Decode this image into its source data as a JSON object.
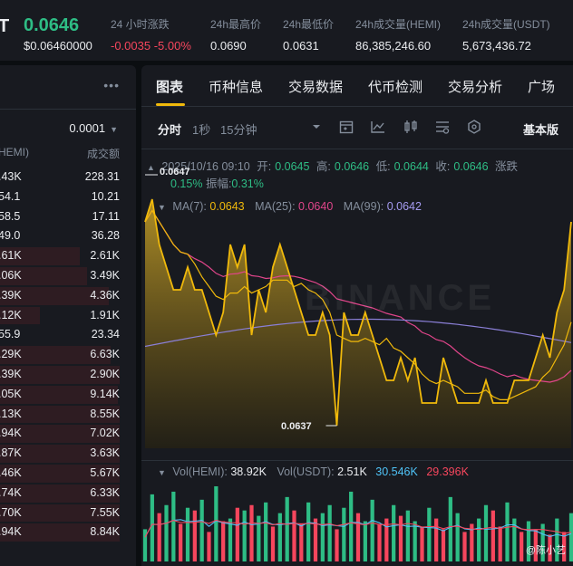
{
  "ticker": {
    "symbol": "T",
    "last_price": "0.0646",
    "last_price_usd": "$0.06460000",
    "stats": [
      {
        "label": "24 小时涨跌",
        "value": "-0.0035 -5.00%",
        "negative": true
      },
      {
        "label": "24h最高价",
        "value": "0.0690"
      },
      {
        "label": "24h最低价",
        "value": "0.0631"
      },
      {
        "label": "24h成交量(HEMI)",
        "value": "86,385,246.60"
      },
      {
        "label": "24h成交量(USDT)",
        "value": "5,673,436.72"
      }
    ]
  },
  "order_book": {
    "more_icon": "more-horizontal-icon",
    "precision": "0.0001",
    "col_amount": "HEMI)",
    "col_total": "成交额",
    "rows": [
      {
        "amount": ".43K",
        "total": "228.31",
        "dark": false
      },
      {
        "amount": "54.1",
        "total": "10.21",
        "dark": false
      },
      {
        "amount": "58.5",
        "total": "17.11",
        "dark": false
      },
      {
        "amount": "49.0",
        "total": "36.28",
        "dark": false
      },
      {
        "amount": ".61K",
        "total": "2.61K",
        "dark": true
      },
      {
        "amount": ".06K",
        "total": "3.49K",
        "dark": true
      },
      {
        "amount": ".39K",
        "total": "4.36K",
        "dark": true
      },
      {
        "amount": ".12K",
        "total": "1.91K",
        "dark": true
      },
      {
        "amount": "55.9",
        "total": "23.34",
        "dark": false
      },
      {
        "amount": ".29K",
        "total": "6.63K",
        "dark": true
      },
      {
        "amount": ".39K",
        "total": "2.90K",
        "dark": true
      },
      {
        "amount": ".05K",
        "total": "9.14K",
        "dark": true
      },
      {
        "amount": ".13K",
        "total": "8.55K",
        "dark": true
      },
      {
        "amount": ".94K",
        "total": "7.02K",
        "dark": true
      },
      {
        "amount": ".87K",
        "total": "3.63K",
        "dark": true
      },
      {
        "amount": ".46K",
        "total": "5.67K",
        "dark": true
      },
      {
        "amount": ".74K",
        "total": "6.33K",
        "dark": true
      },
      {
        "amount": ".70K",
        "total": "7.55K",
        "dark": true
      },
      {
        "amount": ".94K",
        "total": "8.84K",
        "dark": true
      }
    ]
  },
  "tabs": [
    "图表",
    "币种信息",
    "交易数据",
    "代币检测",
    "交易分析",
    "广场"
  ],
  "toolbar": {
    "intervals": [
      "分时",
      "1秒",
      "15分钟"
    ],
    "icons": [
      "chevron-down-icon",
      "calendar-icon",
      "indicator-icon",
      "candlestick-icon",
      "settings-icon",
      "hexagon-icon"
    ],
    "basic": "基本版"
  },
  "chart": {
    "ohlc": {
      "time": "2025/10/16 09:10",
      "open_label": "开:",
      "open": "0.0645",
      "high_label": "高:",
      "high": "0.0646",
      "low_label": "低:",
      "low": "0.0644",
      "close_label": "收:",
      "close": "0.0646",
      "change_label": "涨跌",
      "change_pct": "0.15%",
      "amp_label": "振幅:",
      "amp": "0.31%"
    },
    "ma": {
      "ma7_label": "MA(7):",
      "ma7": "0.0643",
      "ma25_label": "MA(25):",
      "ma25": "0.0640",
      "ma99_label": "MA(99):",
      "ma99": "0.0642"
    },
    "marker_high": "0.0647",
    "marker_low": "0.0637",
    "watermark": "BINANCE",
    "volume": {
      "hemi_label": "Vol(HEMI):",
      "hemi": "38.92K",
      "usdt_label": "Vol(USDT):",
      "usdt": "2.51K",
      "ma5": "30.546K",
      "ma10": "29.396K"
    },
    "credit": "@陈小艺",
    "colors": {
      "up": "#2ebd85",
      "down": "#f6465d",
      "price": "#f0b90b",
      "ma25": "#e0458a",
      "ma99": "#8a7fd6",
      "accent": "#f0b90b"
    }
  },
  "chart_data": {
    "type": "area",
    "title": "",
    "ylim": [
      0.0636,
      0.0648
    ],
    "price": [
      0.0646,
      0.0647,
      0.0645,
      0.0644,
      0.0643,
      0.0643,
      0.0644,
      0.0643,
      0.0643,
      0.0642,
      0.0641,
      0.0642,
      0.0645,
      0.0644,
      0.0645,
      0.0641,
      0.0643,
      0.0642,
      0.0644,
      0.0645,
      0.0644,
      0.0643,
      0.0642,
      0.0641,
      0.0641,
      0.0642,
      0.0641,
      0.0637,
      0.0642,
      0.0641,
      0.0641,
      0.0642,
      0.0641,
      0.064,
      0.0639,
      0.0639,
      0.064,
      0.0639,
      0.064,
      0.0638,
      0.0638,
      0.0638,
      0.064,
      0.0639,
      0.0638,
      0.0638,
      0.0638,
      0.0638,
      0.0639,
      0.0638,
      0.0638,
      0.0638,
      0.0639,
      0.0639,
      0.0639,
      0.064,
      0.0641,
      0.064,
      0.0642,
      0.0643,
      0.0646
    ],
    "volume": [
      1.2,
      2.5,
      1.8,
      2.1,
      2.6,
      1.4,
      2.0,
      1.9,
      2.3,
      1.1,
      2.8,
      1.5,
      1.6,
      2.0,
      1.9,
      2.1,
      1.7,
      2.2,
      1.3,
      1.8,
      2.4,
      1.9,
      1.4,
      2.2,
      1.6,
      1.8,
      2.1,
      1.2,
      2.0,
      2.6,
      1.8,
      1.5,
      2.3,
      1.4,
      1.6,
      2.1,
      1.7,
      1.9,
      1.5,
      1.3,
      2.0,
      1.6,
      1.2,
      2.4,
      1.8,
      1.1,
      1.4,
      1.6,
      2.1,
      1.9,
      1.3,
      2.2,
      1.6,
      1.1,
      1.5,
      1.2,
      1.4,
      1.0,
      1.6,
      1.1,
      1.8
    ],
    "volume_up": [
      true,
      true,
      false,
      true,
      true,
      false,
      true,
      false,
      true,
      false,
      true,
      false,
      true,
      false,
      true,
      false,
      true,
      true,
      false,
      true,
      true,
      false,
      false,
      true,
      false,
      true,
      true,
      false,
      true,
      true,
      false,
      true,
      true,
      false,
      false,
      true,
      false,
      true,
      true,
      false,
      true,
      false,
      false,
      true,
      true,
      false,
      false,
      true,
      true,
      false,
      false,
      true,
      true,
      false,
      true,
      false,
      true,
      false,
      true,
      false,
      true
    ]
  }
}
